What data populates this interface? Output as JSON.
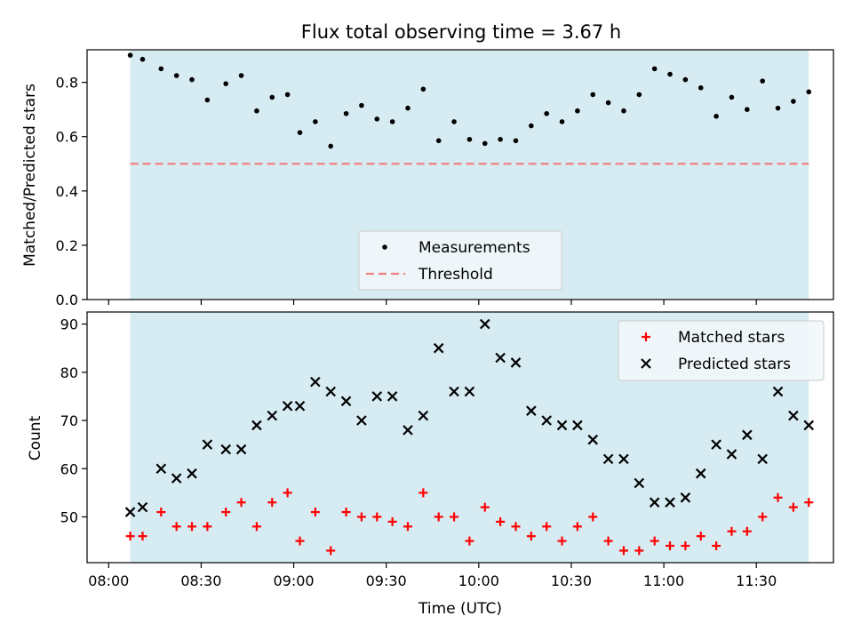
{
  "title": "Flux total observing time = 3.67 h",
  "colors": {
    "shade": "#add8e6",
    "threshold": "#f08080",
    "measurement": "#000000",
    "matched": "#ff0000",
    "predicted": "#000000",
    "legend_bg": "#f2f7f9"
  },
  "chart_data": [
    {
      "type": "scatter",
      "ylabel": "Matched/Predicted stars",
      "xlabel": "",
      "xlim": [
        "07:53",
        "11:55"
      ],
      "ylim": [
        0,
        0.92
      ],
      "yticks": [
        0.0,
        0.2,
        0.4,
        0.6,
        0.8
      ],
      "ytick_labels": [
        "0.0",
        "0.2",
        "0.4",
        "0.6",
        "0.8"
      ],
      "shaded_span": [
        "08:07",
        "11:47"
      ],
      "legend_position": "lower center",
      "threshold": {
        "name": "Threshold",
        "value": 0.5,
        "style": "dashed"
      },
      "series": [
        {
          "name": "Measurements",
          "marker": "dot",
          "x": [
            "08:07",
            "08:11",
            "08:17",
            "08:22",
            "08:27",
            "08:32",
            "08:38",
            "08:43",
            "08:48",
            "08:53",
            "08:58",
            "09:02",
            "09:07",
            "09:12",
            "09:17",
            "09:22",
            "09:27",
            "09:32",
            "09:37",
            "09:42",
            "09:47",
            "09:52",
            "09:57",
            "10:02",
            "10:07",
            "10:12",
            "10:17",
            "10:22",
            "10:27",
            "10:32",
            "10:37",
            "10:42",
            "10:47",
            "10:52",
            "10:57",
            "11:02",
            "11:07",
            "11:12",
            "11:17",
            "11:22",
            "11:27",
            "11:32",
            "11:37",
            "11:42",
            "11:47"
          ],
          "y": [
            0.9,
            0.885,
            0.85,
            0.825,
            0.81,
            0.735,
            0.795,
            0.825,
            0.695,
            0.745,
            0.755,
            0.615,
            0.655,
            0.565,
            0.685,
            0.715,
            0.665,
            0.655,
            0.705,
            0.775,
            0.585,
            0.655,
            0.59,
            0.575,
            0.59,
            0.585,
            0.64,
            0.685,
            0.655,
            0.695,
            0.755,
            0.725,
            0.695,
            0.755,
            0.85,
            0.83,
            0.81,
            0.78,
            0.675,
            0.745,
            0.7,
            0.805,
            0.705,
            0.73,
            0.765
          ]
        }
      ]
    },
    {
      "type": "scatter",
      "ylabel": "Count",
      "xlabel": "Time (UTC)",
      "xlim": [
        "07:53",
        "11:55"
      ],
      "ylim": [
        40.5,
        92.5
      ],
      "yticks": [
        50,
        60,
        70,
        80,
        90
      ],
      "ytick_labels": [
        "50",
        "60",
        "70",
        "80",
        "90"
      ],
      "xticks": [
        "08:00",
        "08:30",
        "09:00",
        "09:30",
        "10:00",
        "10:30",
        "11:00",
        "11:30"
      ],
      "xtick_labels": [
        "08:00",
        "08:30",
        "09:00",
        "09:30",
        "10:00",
        "10:30",
        "11:00",
        "11:30"
      ],
      "shaded_span": [
        "08:07",
        "11:47"
      ],
      "legend_position": "upper right",
      "series": [
        {
          "name": "Matched stars",
          "marker": "plus",
          "x": [
            "08:07",
            "08:11",
            "08:17",
            "08:22",
            "08:27",
            "08:32",
            "08:38",
            "08:43",
            "08:48",
            "08:53",
            "08:58",
            "09:02",
            "09:07",
            "09:12",
            "09:17",
            "09:22",
            "09:27",
            "09:32",
            "09:37",
            "09:42",
            "09:47",
            "09:52",
            "09:57",
            "10:02",
            "10:07",
            "10:12",
            "10:17",
            "10:22",
            "10:27",
            "10:32",
            "10:37",
            "10:42",
            "10:47",
            "10:52",
            "10:57",
            "11:02",
            "11:07",
            "11:12",
            "11:17",
            "11:22",
            "11:27",
            "11:32",
            "11:37",
            "11:42",
            "11:47"
          ],
          "y": [
            46,
            46,
            51,
            48,
            48,
            48,
            51,
            53,
            48,
            53,
            55,
            45,
            51,
            43,
            51,
            50,
            50,
            49,
            48,
            55,
            50,
            50,
            45,
            52,
            49,
            48,
            46,
            48,
            45,
            48,
            50,
            45,
            43,
            43,
            45,
            44,
            44,
            46,
            44,
            47,
            47,
            50,
            54,
            52,
            53
          ]
        },
        {
          "name": "Predicted stars",
          "marker": "x",
          "x": [
            "08:07",
            "08:11",
            "08:17",
            "08:22",
            "08:27",
            "08:32",
            "08:38",
            "08:43",
            "08:48",
            "08:53",
            "08:58",
            "09:02",
            "09:07",
            "09:12",
            "09:17",
            "09:22",
            "09:27",
            "09:32",
            "09:37",
            "09:42",
            "09:47",
            "09:52",
            "09:57",
            "10:02",
            "10:07",
            "10:12",
            "10:17",
            "10:22",
            "10:27",
            "10:32",
            "10:37",
            "10:42",
            "10:47",
            "10:52",
            "10:57",
            "11:02",
            "11:07",
            "11:12",
            "11:17",
            "11:22",
            "11:27",
            "11:32",
            "11:37",
            "11:42",
            "11:47"
          ],
          "y": [
            51,
            52,
            60,
            58,
            59,
            65,
            64,
            64,
            69,
            71,
            73,
            73,
            78,
            76,
            74,
            70,
            75,
            75,
            68,
            71,
            85,
            76,
            76,
            90,
            83,
            82,
            72,
            70,
            69,
            69,
            66,
            62,
            62,
            57,
            53,
            53,
            54,
            59,
            65,
            63,
            67,
            62,
            76,
            71,
            69
          ]
        }
      ]
    }
  ]
}
